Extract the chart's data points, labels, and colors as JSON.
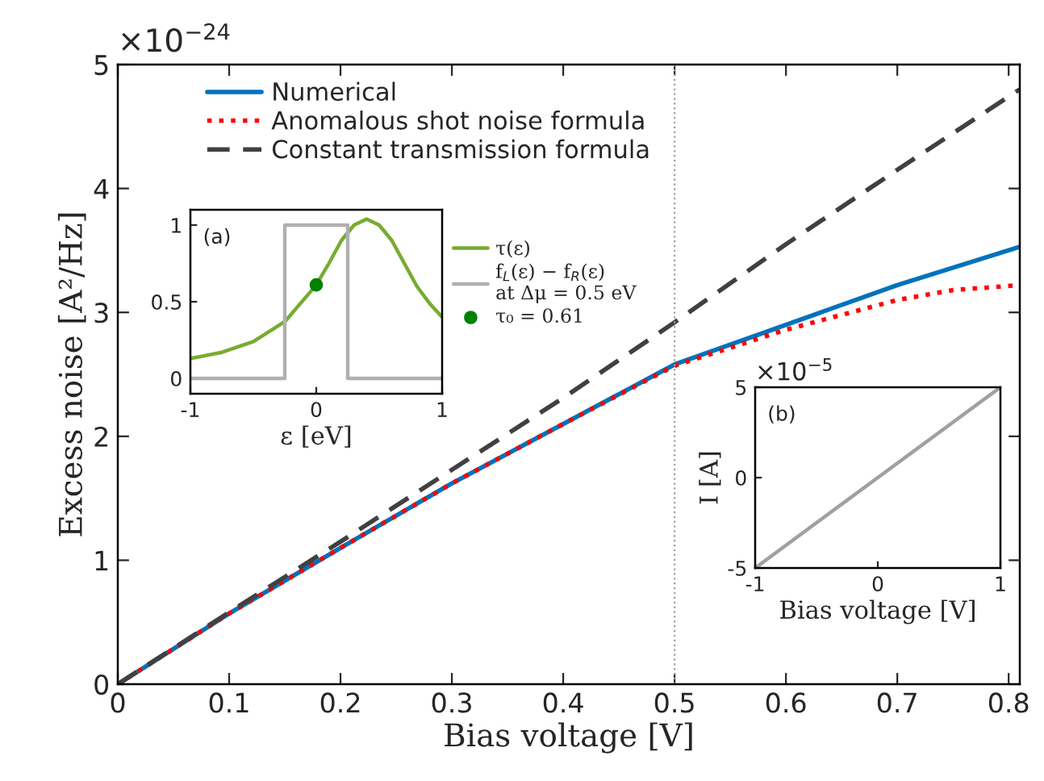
{
  "chart_data": [
    {
      "type": "line",
      "xlabel": "Bias voltage [V]",
      "ylabel": "Excess noise [A²/Hz]",
      "annotations": [
        "×10$^{−24}$"
      ],
      "xlim": [
        0,
        0.81
      ],
      "xticks": [
        0,
        0.1,
        0.2,
        0.3,
        0.4,
        0.5,
        0.6,
        0.7,
        0.8
      ],
      "ylim": [
        0,
        5
      ],
      "yticks": [
        0,
        1,
        2,
        3,
        4,
        5
      ],
      "grid": false,
      "legend": "top left",
      "ref_lines": [
        {
          "axis": "x",
          "value": 0.5,
          "color": "#a0a0a0",
          "line_style": "dotted"
        }
      ],
      "series": [
        {
          "name": "Numerical",
          "color": "#0072bd",
          "line_style": "solid",
          "x": [
            0,
            0.1,
            0.2,
            0.3,
            0.4,
            0.5,
            0.6,
            0.7,
            0.81
          ],
          "values": [
            0,
            0.57,
            1.1,
            1.62,
            2.1,
            2.58,
            2.9,
            3.22,
            3.53
          ]
        },
        {
          "name": "Anomalous shot noise formula",
          "color": "#ff0000",
          "line_style": "dotted",
          "x": [
            0,
            0.1,
            0.2,
            0.3,
            0.4,
            0.5,
            0.6,
            0.7,
            0.75,
            0.81
          ],
          "values": [
            0,
            0.57,
            1.1,
            1.62,
            2.1,
            2.57,
            2.86,
            3.1,
            3.18,
            3.22
          ]
        },
        {
          "name": "Constant transmission formula",
          "color": "#404040",
          "line_style": "dashed",
          "x": [
            0,
            0.1,
            0.2,
            0.3,
            0.4,
            0.5,
            0.6,
            0.7,
            0.81
          ],
          "values": [
            0,
            0.58,
            1.15,
            1.73,
            2.31,
            2.92,
            3.55,
            4.15,
            4.8
          ]
        }
      ]
    },
    {
      "type": "line",
      "xlabel": "ε [eV]",
      "annotations": [
        "(a)"
      ],
      "xlim": [
        -1,
        1
      ],
      "xticks": [
        -1,
        0,
        1
      ],
      "ylim": [
        -0.1,
        1.1
      ],
      "yticks": [
        0,
        0.5,
        1
      ],
      "grid": false,
      "legend": "right",
      "series": [
        {
          "name": "τ(ε)",
          "color": "#77ac30",
          "line_style": "solid",
          "x": [
            -1,
            -0.75,
            -0.5,
            -0.25,
            0,
            0.1,
            0.2,
            0.3,
            0.4,
            0.5,
            0.6,
            0.7,
            0.8,
            0.9,
            1
          ],
          "values": [
            0.13,
            0.17,
            0.24,
            0.37,
            0.61,
            0.75,
            0.9,
            1.0,
            1.04,
            1.0,
            0.9,
            0.75,
            0.6,
            0.49,
            0.4
          ]
        },
        {
          "name": "f$_{L}$(ε) − f$_{R}$(ε)\nat Δμ = 0.5 eV",
          "color": "#b0b0b0",
          "line_style": "solid",
          "x": [
            -1,
            -0.25,
            -0.25,
            0.25,
            0.25,
            1
          ],
          "values": [
            0,
            0,
            1,
            1,
            0,
            0
          ]
        },
        {
          "name": "τ₀ = 0.61",
          "type": "scatter",
          "marker": "circle",
          "color": "#008000",
          "x": [
            0
          ],
          "values": [
            0.61
          ]
        }
      ]
    },
    {
      "type": "line",
      "xlabel": "Bias voltage [V]",
      "ylabel": "I [A]",
      "annotations": [
        "×10$^{−5}$",
        "(b)"
      ],
      "xlim": [
        -1,
        1
      ],
      "xticks": [
        -1,
        0,
        1
      ],
      "ylim": [
        -5,
        5
      ],
      "yticks": [
        -5,
        0,
        5
      ],
      "grid": false,
      "series": [
        {
          "color": "#a0a0a0",
          "line_style": "solid",
          "x": [
            -1,
            1
          ],
          "values": [
            -5,
            5
          ]
        }
      ]
    }
  ]
}
